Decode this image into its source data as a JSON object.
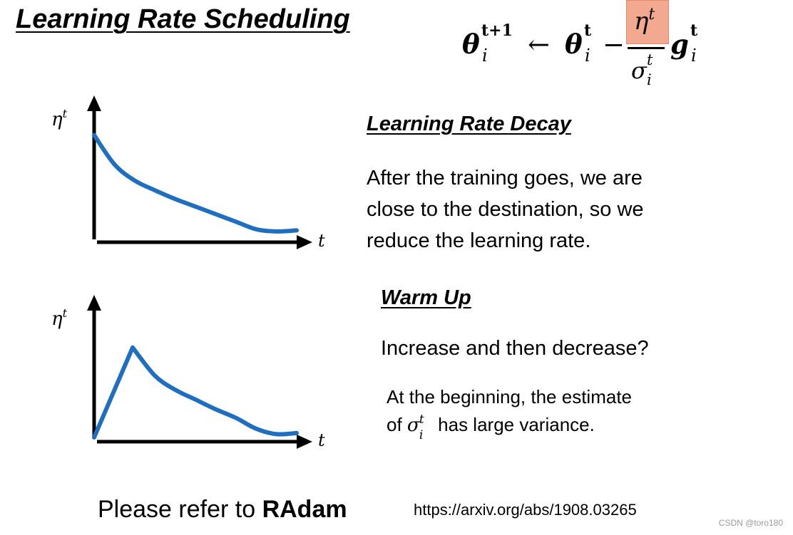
{
  "title": "Learning Rate Scheduling",
  "formula": {
    "lhs": "θ",
    "lhs_sup": "t+1",
    "lhs_sub": "i",
    "arrow": "←",
    "theta": "θ",
    "theta_sup": "t",
    "theta_sub": "i",
    "minus": "−",
    "numerator": "η",
    "numerator_sup": "t",
    "denominator": "σ",
    "denominator_sup": "t",
    "denominator_sub": "i",
    "g": "g",
    "g_sup": "t",
    "g_sub": "i",
    "highlight_color": "#f2a98f"
  },
  "decay": {
    "heading": "Learning Rate Decay",
    "lines": [
      "After the training goes, we are",
      "close to the destination, so we",
      "reduce the learning rate."
    ]
  },
  "warmup": {
    "heading": "Warm Up",
    "question": "Increase and then decrease?",
    "note_line1": "At the beginning, the estimate",
    "note_line2_prefix": "of",
    "note_symbol": "σ",
    "note_symbol_sup": "t",
    "note_symbol_sub": "i",
    "note_line2_suffix": "has large variance."
  },
  "charts": {
    "y_label": "η",
    "y_label_sup": "t",
    "x_label": "t",
    "curve_color": "#1f6fc1"
  },
  "chart_data": [
    {
      "type": "line",
      "title": "Learning Rate Decay",
      "xlabel": "t",
      "ylabel": "ηt",
      "xlim": [
        0,
        1
      ],
      "ylim": [
        0,
        1
      ],
      "x": [
        0.0,
        0.1,
        0.2,
        0.3,
        0.4,
        0.5,
        0.6,
        0.7,
        0.8,
        0.9,
        1.0
      ],
      "values": [
        0.95,
        0.68,
        0.53,
        0.44,
        0.36,
        0.29,
        0.22,
        0.15,
        0.08,
        0.06,
        0.07
      ]
    },
    {
      "type": "line",
      "title": "Warm Up",
      "xlabel": "t",
      "ylabel": "ηt",
      "xlim": [
        0,
        1
      ],
      "ylim": [
        0,
        1
      ],
      "x": [
        0.0,
        0.19,
        0.3,
        0.4,
        0.5,
        0.6,
        0.7,
        0.8,
        0.9,
        1.0
      ],
      "values": [
        0.0,
        0.83,
        0.57,
        0.44,
        0.35,
        0.26,
        0.18,
        0.08,
        0.03,
        0.04
      ]
    }
  ],
  "footer": {
    "refer_prefix": "Please refer to",
    "refer_bold": "RAdam",
    "url": "https://arxiv.org/abs/1908.03265",
    "watermark": "CSDN @toro180"
  }
}
